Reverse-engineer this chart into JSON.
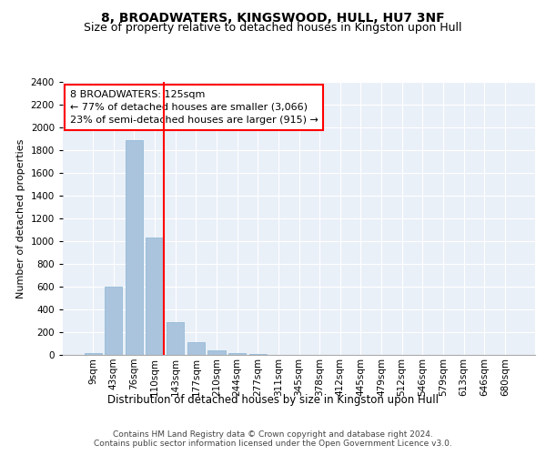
{
  "title1": "8, BROADWATERS, KINGSWOOD, HULL, HU7 3NF",
  "title2": "Size of property relative to detached houses in Kingston upon Hull",
  "xlabel": "Distribution of detached houses by size in Kingston upon Hull",
  "ylabel": "Number of detached properties",
  "bar_labels": [
    "9sqm",
    "43sqm",
    "76sqm",
    "110sqm",
    "143sqm",
    "177sqm",
    "210sqm",
    "244sqm",
    "277sqm",
    "311sqm",
    "345sqm",
    "378sqm",
    "412sqm",
    "445sqm",
    "479sqm",
    "512sqm",
    "546sqm",
    "579sqm",
    "613sqm",
    "646sqm",
    "680sqm"
  ],
  "bar_values": [
    15,
    600,
    1890,
    1030,
    290,
    115,
    40,
    20,
    10,
    0,
    0,
    0,
    0,
    0,
    0,
    0,
    0,
    0,
    0,
    0,
    0
  ],
  "bar_color": "#aac4de",
  "bar_edge_color": "#8ab4d4",
  "vline_color": "red",
  "annotation_line1": "8 BROADWATERS: 125sqm",
  "annotation_line2": "← 77% of detached houses are smaller (3,066)",
  "annotation_line3": "23% of semi-detached houses are larger (915) →",
  "annotation_box_color": "white",
  "annotation_box_edge": "red",
  "ylim": [
    0,
    2400
  ],
  "yticks": [
    0,
    200,
    400,
    600,
    800,
    1000,
    1200,
    1400,
    1600,
    1800,
    2000,
    2200,
    2400
  ],
  "bg_color": "#eaf0f8",
  "footer": "Contains HM Land Registry data © Crown copyright and database right 2024.\nContains public sector information licensed under the Open Government Licence v3.0.",
  "title1_fontsize": 10,
  "title2_fontsize": 9,
  "xlabel_fontsize": 8.5,
  "ylabel_fontsize": 8,
  "tick_fontsize": 7.5,
  "annotation_fontsize": 8,
  "footer_fontsize": 6.5
}
